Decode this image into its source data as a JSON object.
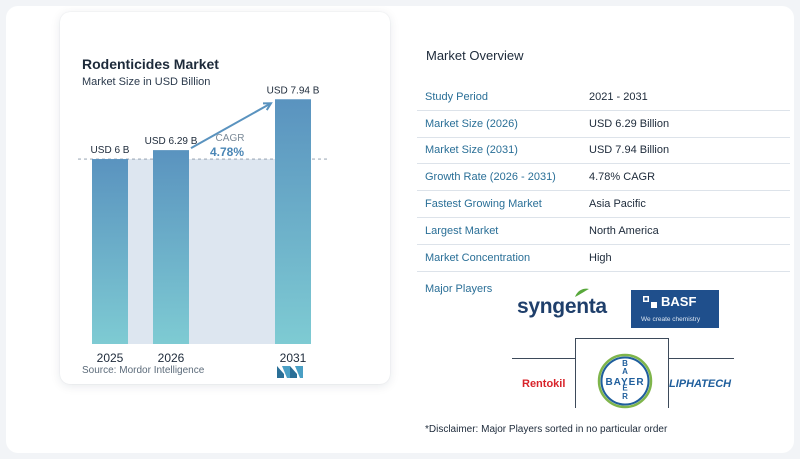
{
  "chart_data": {
    "type": "bar",
    "title": "Rodenticides Market",
    "subtitle": "Market Size in USD Billion",
    "categories": [
      "2025",
      "2026",
      "2031"
    ],
    "values": [
      6,
      6.29,
      7.94
    ],
    "data_labels": [
      "USD 6 B",
      "USD 6.29 B",
      "USD 7.94 B"
    ],
    "annotation": {
      "label": "CAGR",
      "value": "4.78%"
    },
    "ylim": [
      0,
      8.5
    ],
    "xlabel": "",
    "ylabel": "",
    "grid": false,
    "colors": {
      "bar_top": "#5a93bf",
      "bar_bottom": "#7ecbd3",
      "band": "#dde6f0",
      "arrow": "#5a93bf",
      "cagr_label": "#7b8a98",
      "cagr_value": "#4a86b5"
    }
  },
  "source": "Source:  Mordor Intelligence",
  "logo_icon": "mordor-intelligence-logo",
  "overview": {
    "title": "Market Overview",
    "rows": [
      {
        "label": "Study Period",
        "value": "2021 - 2031"
      },
      {
        "label": "Market Size (2026)",
        "value": "USD 6.29 Billion"
      },
      {
        "label": "Market Size (2031)",
        "value": "USD 7.94 Billion"
      },
      {
        "label": "Growth Rate (2026 - 2031)",
        "value": "4.78% CAGR"
      },
      {
        "label": "Fastest Growing Market",
        "value": "Asia Pacific"
      },
      {
        "label": "Largest Market",
        "value": "North America"
      },
      {
        "label": "Market Concentration",
        "value": "High"
      }
    ]
  },
  "players": {
    "label": "Major Players",
    "syngenta": "syngenta",
    "basf_name": "BASF",
    "basf_tagline": "We create chemistry",
    "rentokil": "Rentokil",
    "bayer": "BAYER",
    "liphatech": "LIPHATECH"
  },
  "disclaimer": "*Disclaimer: Major Players sorted in no particular order"
}
